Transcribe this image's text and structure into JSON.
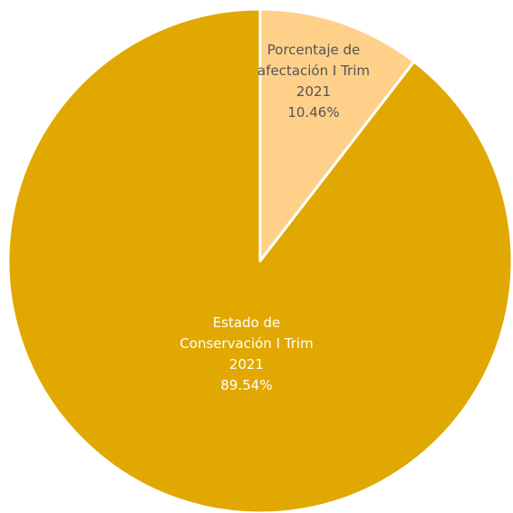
{
  "chart_data": {
    "type": "pie",
    "title": "",
    "categories": [
      "Porcentaje de afectación I Trim 2021",
      "Estado de Conservación I Trim 2021"
    ],
    "values": [
      10.46,
      89.54
    ],
    "unit": "%",
    "slices": [
      {
        "label_lines": [
          "Porcentaje de",
          "afectación I Trim",
          "2021"
        ],
        "value_text": "10.46%",
        "value": 10.46,
        "color": "#FFD08A",
        "label_color": "#555555"
      },
      {
        "label_lines": [
          "Estado de",
          "Conservación I Trim",
          "2021"
        ],
        "value_text": "89.54%",
        "value": 89.54,
        "color": "#E0A800",
        "label_color": "#ffffff"
      }
    ],
    "start_angle_deg": 0,
    "direction": "clockwise",
    "legend": "none"
  }
}
